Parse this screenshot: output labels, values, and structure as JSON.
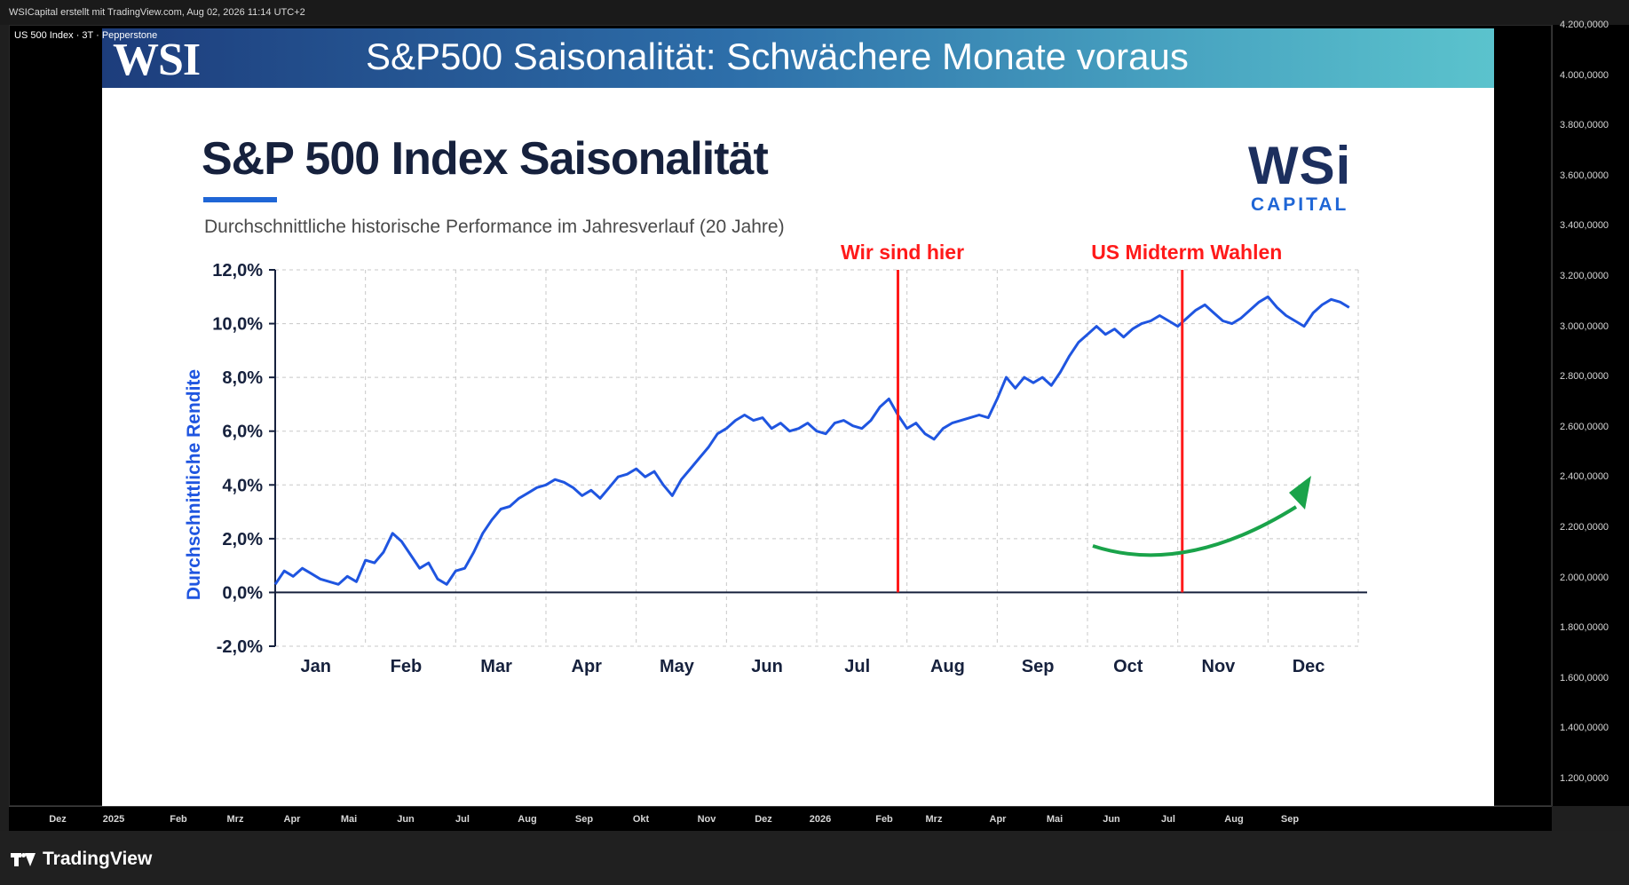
{
  "tradingview": {
    "header_text": "WSICapital erstellt mit TradingView.com, Aug 02, 2026 11:14 UTC+2",
    "symbol_label": "US 500 Index · 3T · Pepperstone",
    "logo_text": "TradingView",
    "price_axis_labels": [
      "4.200,0000",
      "4.000,0000",
      "3.800,0000",
      "3.600,0000",
      "3.400,0000",
      "3.200,0000",
      "3.000,0000",
      "2.800,0000",
      "2.600,0000",
      "2.400,0000",
      "2.200,0000",
      "2.000,0000",
      "1.800,0000",
      "1.600,0000",
      "1.400,0000",
      "1.200,0000"
    ],
    "time_axis_labels": [
      "Dez",
      "2025",
      "Feb",
      "Mrz",
      "Apr",
      "Mai",
      "Jun",
      "Jul",
      "Aug",
      "Sep",
      "Okt",
      "Nov",
      "Dez",
      "2026",
      "Feb",
      "Mrz",
      "Apr",
      "Mai",
      "Jun",
      "Jul",
      "Aug",
      "Sep"
    ]
  },
  "banner": {
    "logo": "WSI",
    "title": "S&P500 Saisonalität: Schwächere Monate voraus"
  },
  "brand": {
    "logo_big": "WSi",
    "logo_small": "CAPITAL"
  },
  "colors": {
    "line": "#1f55e0",
    "markers": "#ff1a1a",
    "arrow": "#1aa34a",
    "title": "#16213d"
  },
  "chart_data": {
    "type": "line",
    "title": "S&P 500 Index Saisonalität",
    "subtitle": "Durchschnittliche historische Performance im Jahresverlauf (20 Jahre)",
    "ylabel": "Durchschnittliche Rendite",
    "xlabel": "",
    "ylim": [
      -2,
      12
    ],
    "y_ticks": [
      "12,0%",
      "10,0%",
      "8,0%",
      "6,0%",
      "4,0%",
      "2,0%",
      "0,0%",
      "-2,0%"
    ],
    "categories": [
      "Jan",
      "Feb",
      "Mar",
      "Apr",
      "May",
      "Jun",
      "Jul",
      "Aug",
      "Sep",
      "Oct",
      "Nov",
      "Dec"
    ],
    "grid": true,
    "series": [
      {
        "x": [
          0.0,
          0.1,
          0.2,
          0.3,
          0.4,
          0.5,
          0.6,
          0.7,
          0.8,
          0.9,
          1.0,
          1.1,
          1.2,
          1.3,
          1.4,
          1.5,
          1.6,
          1.7,
          1.8,
          1.9,
          2.0,
          2.1,
          2.2,
          2.3,
          2.4,
          2.5,
          2.6,
          2.7,
          2.8,
          2.9,
          3.0,
          3.1,
          3.2,
          3.3,
          3.4,
          3.5,
          3.6,
          3.7,
          3.8,
          3.9,
          4.0,
          4.1,
          4.2,
          4.3,
          4.4,
          4.5,
          4.6,
          4.7,
          4.8,
          4.9,
          5.0,
          5.1,
          5.2,
          5.3,
          5.4,
          5.5,
          5.6,
          5.7,
          5.8,
          5.9,
          6.0,
          6.1,
          6.2,
          6.3,
          6.4,
          6.5,
          6.6,
          6.7,
          6.8,
          6.9,
          7.0,
          7.1,
          7.2,
          7.3,
          7.4,
          7.5,
          7.6,
          7.7,
          7.8,
          7.9,
          8.0,
          8.1,
          8.2,
          8.3,
          8.4,
          8.5,
          8.6,
          8.7,
          8.8,
          8.9,
          9.0,
          9.1,
          9.2,
          9.3,
          9.4,
          9.5,
          9.6,
          9.7,
          9.8,
          9.9,
          10.0,
          10.1,
          10.2,
          10.3,
          10.4,
          10.5,
          10.6,
          10.7,
          10.8,
          10.9,
          11.0,
          11.1,
          11.2,
          11.3,
          11.4,
          11.5,
          11.6,
          11.7,
          11.8,
          11.9
        ],
        "values": [
          0.3,
          0.8,
          0.6,
          0.9,
          0.7,
          0.5,
          0.4,
          0.3,
          0.6,
          0.4,
          1.2,
          1.1,
          1.5,
          2.2,
          1.9,
          1.4,
          0.9,
          1.1,
          0.5,
          0.3,
          0.8,
          0.9,
          1.5,
          2.2,
          2.7,
          3.1,
          3.2,
          3.5,
          3.7,
          3.9,
          4.0,
          4.2,
          4.1,
          3.9,
          3.6,
          3.8,
          3.5,
          3.9,
          4.3,
          4.4,
          4.6,
          4.3,
          4.5,
          4.0,
          3.6,
          4.2,
          4.6,
          5.0,
          5.4,
          5.9,
          6.1,
          6.4,
          6.6,
          6.4,
          6.5,
          6.1,
          6.3,
          6.0,
          6.1,
          6.3,
          6.0,
          5.9,
          6.3,
          6.4,
          6.2,
          6.1,
          6.4,
          6.9,
          7.2,
          6.6,
          6.1,
          6.3,
          5.9,
          5.7,
          6.1,
          6.3,
          6.4,
          6.5,
          6.6,
          6.5,
          7.2,
          8.0,
          7.6,
          8.0,
          7.8,
          8.0,
          7.7,
          8.2,
          8.8,
          9.3,
          9.6,
          9.9,
          9.6,
          9.8,
          9.5,
          9.8,
          10.0,
          10.1,
          10.3,
          10.1,
          9.9,
          10.2,
          10.5,
          10.7,
          10.4,
          10.1,
          10.0,
          10.2,
          10.5,
          10.8,
          11.0,
          10.6,
          10.3,
          10.1,
          9.9,
          10.4,
          10.7,
          10.9,
          10.8,
          10.6
        ]
      }
    ],
    "annotations": [
      {
        "text": "Wir sind hier",
        "color": "#ff1a1a",
        "x": 6.9
      },
      {
        "text": "US Midterm Wahlen",
        "color": "#ff1a1a",
        "x": 10.05
      }
    ]
  }
}
